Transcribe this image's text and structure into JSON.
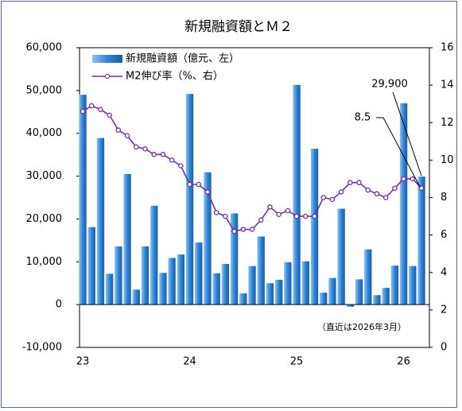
{
  "chart_data": {
    "type": "bar_line",
    "title": "新規融資額とＭ２",
    "note": "（直近は2026年3月）",
    "categories": [
      "23",
      null,
      null,
      null,
      null,
      null,
      null,
      null,
      null,
      null,
      null,
      null,
      "24",
      null,
      null,
      null,
      null,
      null,
      null,
      null,
      null,
      null,
      null,
      null,
      "25",
      null,
      null,
      null,
      null,
      null,
      null,
      null,
      null,
      null,
      null,
      null,
      "26",
      null,
      null
    ],
    "series": [
      {
        "name": "新規融資額（億元、左）",
        "type": "bar",
        "color": "#1f6fc5",
        "values": [
          49000,
          18100,
          38900,
          7200,
          13600,
          30500,
          3500,
          13600,
          23100,
          7400,
          10900,
          11700,
          49200,
          14500,
          30900,
          7300,
          9500,
          21300,
          2600,
          9000,
          15900,
          5000,
          5800,
          9900,
          51300,
          10100,
          36400,
          2800,
          6200,
          22400,
          -500,
          5900,
          12900,
          2200,
          3900,
          9100,
          47000,
          9000,
          29900
        ],
        "value_labels": [
          null,
          null,
          null,
          null,
          null,
          null,
          null,
          null,
          null,
          null,
          null,
          null,
          null,
          null,
          null,
          null,
          null,
          null,
          null,
          null,
          null,
          null,
          null,
          null,
          null,
          null,
          null,
          null,
          null,
          null,
          null,
          null,
          null,
          null,
          null,
          null,
          null,
          null,
          "29,900"
        ]
      },
      {
        "name": "M2伸び率（%、右）",
        "type": "line",
        "axis": "y2",
        "color": "#7030a0",
        "values": [
          12.6,
          12.9,
          12.7,
          12.4,
          11.6,
          11.3,
          10.7,
          10.6,
          10.3,
          10.3,
          10.0,
          9.7,
          8.7,
          8.7,
          8.3,
          7.2,
          7.0,
          6.2,
          6.3,
          6.3,
          6.8,
          7.5,
          7.1,
          7.3,
          7.0,
          7.0,
          7.0,
          8.0,
          7.9,
          8.3,
          8.8,
          8.8,
          8.4,
          8.2,
          8.0,
          8.5,
          9.0,
          9.0,
          8.5
        ],
        "value_labels": [
          null,
          null,
          null,
          null,
          null,
          null,
          null,
          null,
          null,
          null,
          null,
          null,
          null,
          null,
          null,
          null,
          null,
          null,
          null,
          null,
          null,
          null,
          null,
          null,
          null,
          null,
          null,
          null,
          null,
          null,
          null,
          null,
          null,
          null,
          null,
          null,
          null,
          null,
          "8.5"
        ]
      }
    ],
    "ylim": [
      -10000,
      60000
    ],
    "yticks": [
      {
        "value": -10000,
        "label": "-10,000"
      },
      0,
      {
        "value": 10000,
        "label": "10,000"
      },
      {
        "value": 20000,
        "label": "20,000"
      },
      {
        "value": 30000,
        "label": "30,000"
      },
      {
        "value": 40000,
        "label": "40,000"
      },
      {
        "value": 50000,
        "label": "50,000"
      },
      {
        "value": 60000,
        "label": "60,000"
      }
    ],
    "y2lim": [
      0,
      16
    ],
    "y2ticks": [
      0,
      2,
      4,
      6,
      8,
      10,
      12,
      14,
      16
    ],
    "legend": "upper left",
    "grid": false
  }
}
